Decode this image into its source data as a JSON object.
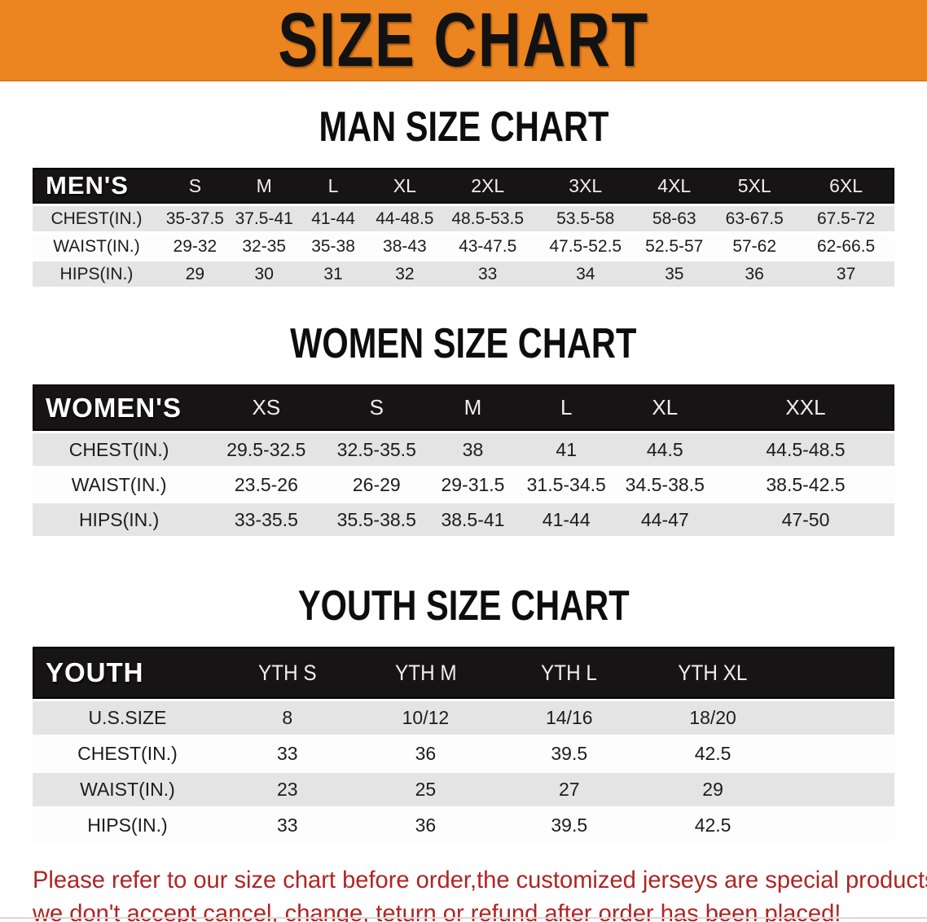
{
  "banner": {
    "title": "SIZE CHART",
    "bg_color": "#ec8420",
    "text_color": "#121212"
  },
  "men": {
    "heading": "MAN SIZE CHART",
    "label": "MEN'S",
    "sizes": [
      "S",
      "M",
      "L",
      "XL",
      "2XL",
      "3XL",
      "4XL",
      "5XL",
      "6XL"
    ],
    "rows": [
      {
        "label": "CHEST(IN.)",
        "values": [
          "35-37.5",
          "37.5-41",
          "41-44",
          "44-48.5",
          "48.5-53.5",
          "53.5-58",
          "58-63",
          "63-67.5",
          "67.5-72"
        ]
      },
      {
        "label": "WAIST(IN.)",
        "values": [
          "29-32",
          "32-35",
          "35-38",
          "38-43",
          "43-47.5",
          "47.5-52.5",
          "52.5-57",
          "57-62",
          "62-66.5"
        ]
      },
      {
        "label": "HIPS(IN.)",
        "values": [
          "29",
          "30",
          "31",
          "32",
          "33",
          "34",
          "35",
          "36",
          "37"
        ]
      }
    ]
  },
  "women": {
    "heading": "WOMEN SIZE CHART",
    "label": "WOMEN'S",
    "sizes": [
      "XS",
      "S",
      "M",
      "L",
      "XL",
      "XXL"
    ],
    "rows": [
      {
        "label": "CHEST(IN.)",
        "values": [
          "29.5-32.5",
          "32.5-35.5",
          "38",
          "41",
          "44.5",
          "44.5-48.5"
        ]
      },
      {
        "label": "WAIST(IN.)",
        "values": [
          "23.5-26",
          "26-29",
          "29-31.5",
          "31.5-34.5",
          "34.5-38.5",
          "38.5-42.5"
        ]
      },
      {
        "label": "HIPS(IN.)",
        "values": [
          "33-35.5",
          "35.5-38.5",
          "38.5-41",
          "41-44",
          "44-47",
          "47-50"
        ]
      }
    ]
  },
  "youth": {
    "heading": "YOUTH SIZE CHART",
    "label": "YOUTH",
    "sizes": [
      "YTH S",
      "YTH M",
      "YTH L",
      "YTH XL"
    ],
    "rows": [
      {
        "label": "U.S.SIZE",
        "values": [
          "8",
          "10/12",
          "14/16",
          "18/20"
        ]
      },
      {
        "label": "CHEST(IN.)",
        "values": [
          "33",
          "36",
          "39.5",
          "42.5"
        ]
      },
      {
        "label": "WAIST(IN.)",
        "values": [
          "23",
          "25",
          "27",
          "29"
        ]
      },
      {
        "label": "HIPS(IN.)",
        "values": [
          "33",
          "36",
          "39.5",
          "42.5"
        ]
      }
    ]
  },
  "disclaimer": {
    "line1": "Please refer to our size chart before order,the customized jerseys are special products,",
    "line2": "we don't accept cancel, change, teturn or refund after order has been placed!",
    "color": "#b02423"
  },
  "table_colors": {
    "header_bg": "#161414",
    "row_gray": "#e5e4e4",
    "row_white": "#fdfdfd"
  }
}
